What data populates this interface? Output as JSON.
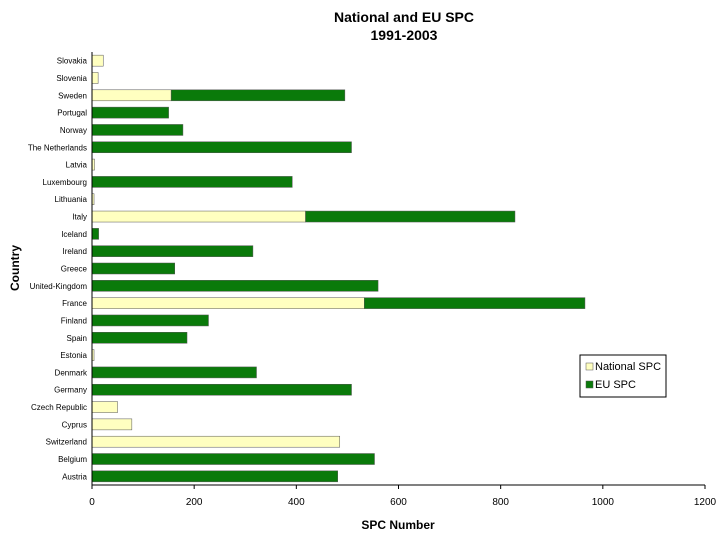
{
  "chart_data": {
    "type": "bar",
    "orientation": "horizontal",
    "stacked": true,
    "title": "National and EU SPC",
    "subtitle": "1991-2003",
    "xlabel": "SPC Number",
    "ylabel": "Country",
    "xlim": [
      0,
      1200
    ],
    "xticks": [
      0,
      200,
      400,
      600,
      800,
      1000,
      1200
    ],
    "grid": false,
    "legend_position": "right",
    "categories": [
      "Slovakia",
      "Slovenia",
      "Sweden",
      "Portugal",
      "Norway",
      "The Netherlands",
      "Latvia",
      "Luxembourg",
      "Lithuania",
      "Italy",
      "Iceland",
      "Ireland",
      "Greece",
      "United-Kingdom",
      "France",
      "Finland",
      "Spain",
      "Estonia",
      "Denmark",
      "Germany",
      "Czech Republic",
      "Cyprus",
      "Switzerland",
      "Belgium",
      "Austria"
    ],
    "series": [
      {
        "name": "National SPC",
        "color": "#ffffc0",
        "values": [
          22,
          12,
          155,
          0,
          0,
          0,
          5,
          0,
          4,
          418,
          0,
          0,
          0,
          0,
          533,
          0,
          0,
          4,
          0,
          0,
          50,
          78,
          485,
          0,
          0
        ]
      },
      {
        "name": "EU SPC",
        "color": "#0a7a0a",
        "values": [
          0,
          0,
          340,
          150,
          178,
          508,
          0,
          392,
          0,
          410,
          13,
          315,
          162,
          560,
          432,
          228,
          186,
          0,
          322,
          508,
          0,
          0,
          0,
          553,
          481
        ]
      }
    ]
  }
}
